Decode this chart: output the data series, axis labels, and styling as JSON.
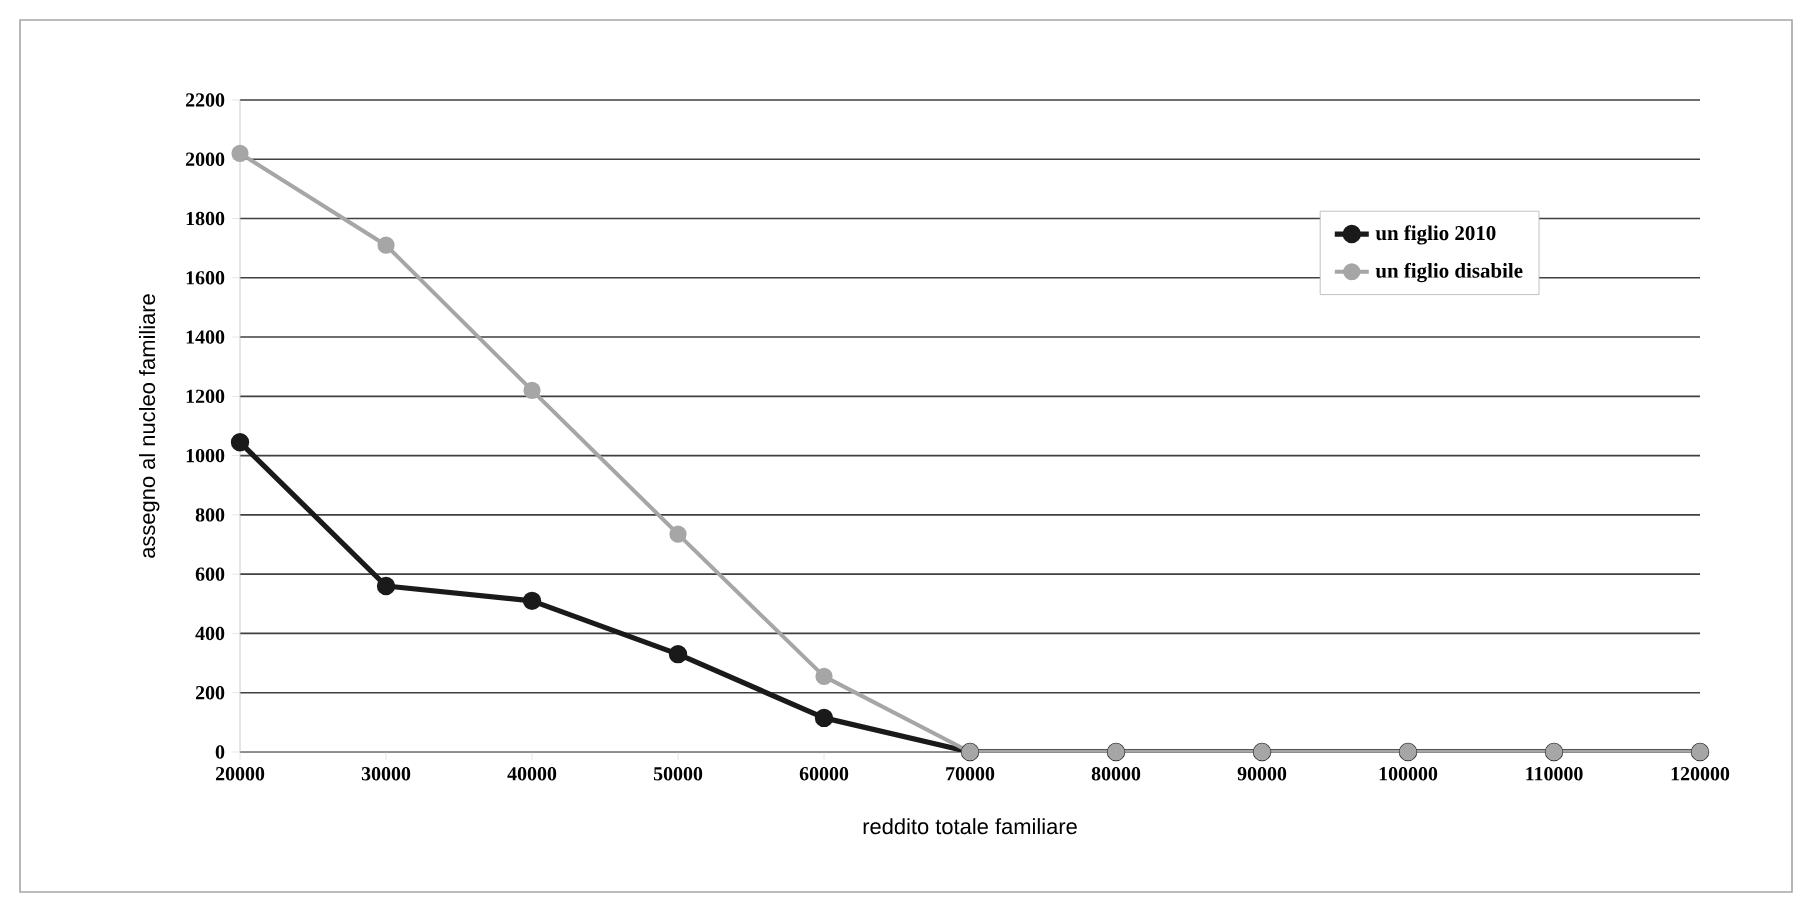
{
  "chart_data": {
    "type": "line",
    "xlabel": "reddito totale familiare",
    "ylabel": "assegno al nucleo familiare",
    "x": [
      20000,
      30000,
      40000,
      50000,
      60000,
      70000,
      80000,
      90000,
      100000,
      110000,
      120000
    ],
    "series": [
      {
        "name": "un figlio 2010",
        "color": "#1a1a1a",
        "values": [
          1045,
          560,
          510,
          330,
          115,
          0,
          0,
          0,
          0,
          0,
          0
        ]
      },
      {
        "name": "un figlio disabile",
        "color": "#a6a6a6",
        "values": [
          2020,
          1710,
          1220,
          735,
          255,
          0,
          0,
          0,
          0,
          0,
          0
        ]
      }
    ],
    "xlim": [
      20000,
      120000
    ],
    "xticks": [
      20000,
      30000,
      40000,
      50000,
      60000,
      70000,
      80000,
      90000,
      100000,
      110000,
      120000
    ],
    "ylim": [
      0,
      2200
    ],
    "yticks": [
      0,
      200,
      400,
      600,
      800,
      1000,
      1200,
      1400,
      1600,
      1800,
      2000,
      2200
    ],
    "grid": "y",
    "legend": "top right",
    "marker": "circle",
    "line_style": "solid"
  }
}
